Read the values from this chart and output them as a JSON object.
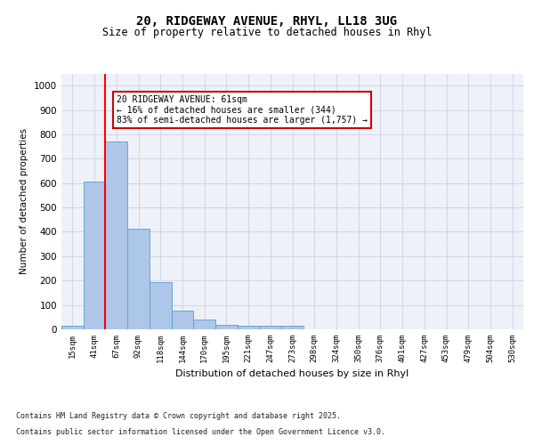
{
  "title_line1": "20, RIDGEWAY AVENUE, RHYL, LL18 3UG",
  "title_line2": "Size of property relative to detached houses in Rhyl",
  "xlabel": "Distribution of detached houses by size in Rhyl",
  "ylabel": "Number of detached properties",
  "bin_labels": [
    "15sqm",
    "41sqm",
    "67sqm",
    "92sqm",
    "118sqm",
    "144sqm",
    "170sqm",
    "195sqm",
    "221sqm",
    "247sqm",
    "273sqm",
    "298sqm",
    "324sqm",
    "350sqm",
    "376sqm",
    "401sqm",
    "427sqm",
    "453sqm",
    "479sqm",
    "504sqm",
    "530sqm"
  ],
  "bar_heights": [
    15,
    607,
    770,
    413,
    192,
    78,
    40,
    20,
    15,
    13,
    13,
    0,
    0,
    0,
    0,
    0,
    0,
    0,
    0,
    0,
    0
  ],
  "bar_color": "#aec6e8",
  "bar_edge_color": "#5a9fd4",
  "grid_color": "#d0d8e8",
  "bg_color": "#eef2f8",
  "red_line_x": 1.5,
  "annotation_title": "20 RIDGEWAY AVENUE: 61sqm",
  "annotation_line1": "← 16% of detached houses are smaller (344)",
  "annotation_line2": "83% of semi-detached houses are larger (1,757) →",
  "annotation_box_color": "#ffffff",
  "annotation_border_color": "#cc0000",
  "ylim": [
    0,
    1050
  ],
  "yticks": [
    0,
    100,
    200,
    300,
    400,
    500,
    600,
    700,
    800,
    900,
    1000
  ],
  "footnote_line1": "Contains HM Land Registry data © Crown copyright and database right 2025.",
  "footnote_line2": "Contains public sector information licensed under the Open Government Licence v3.0.",
  "fig_width": 6.0,
  "fig_height": 5.0,
  "dpi": 100
}
